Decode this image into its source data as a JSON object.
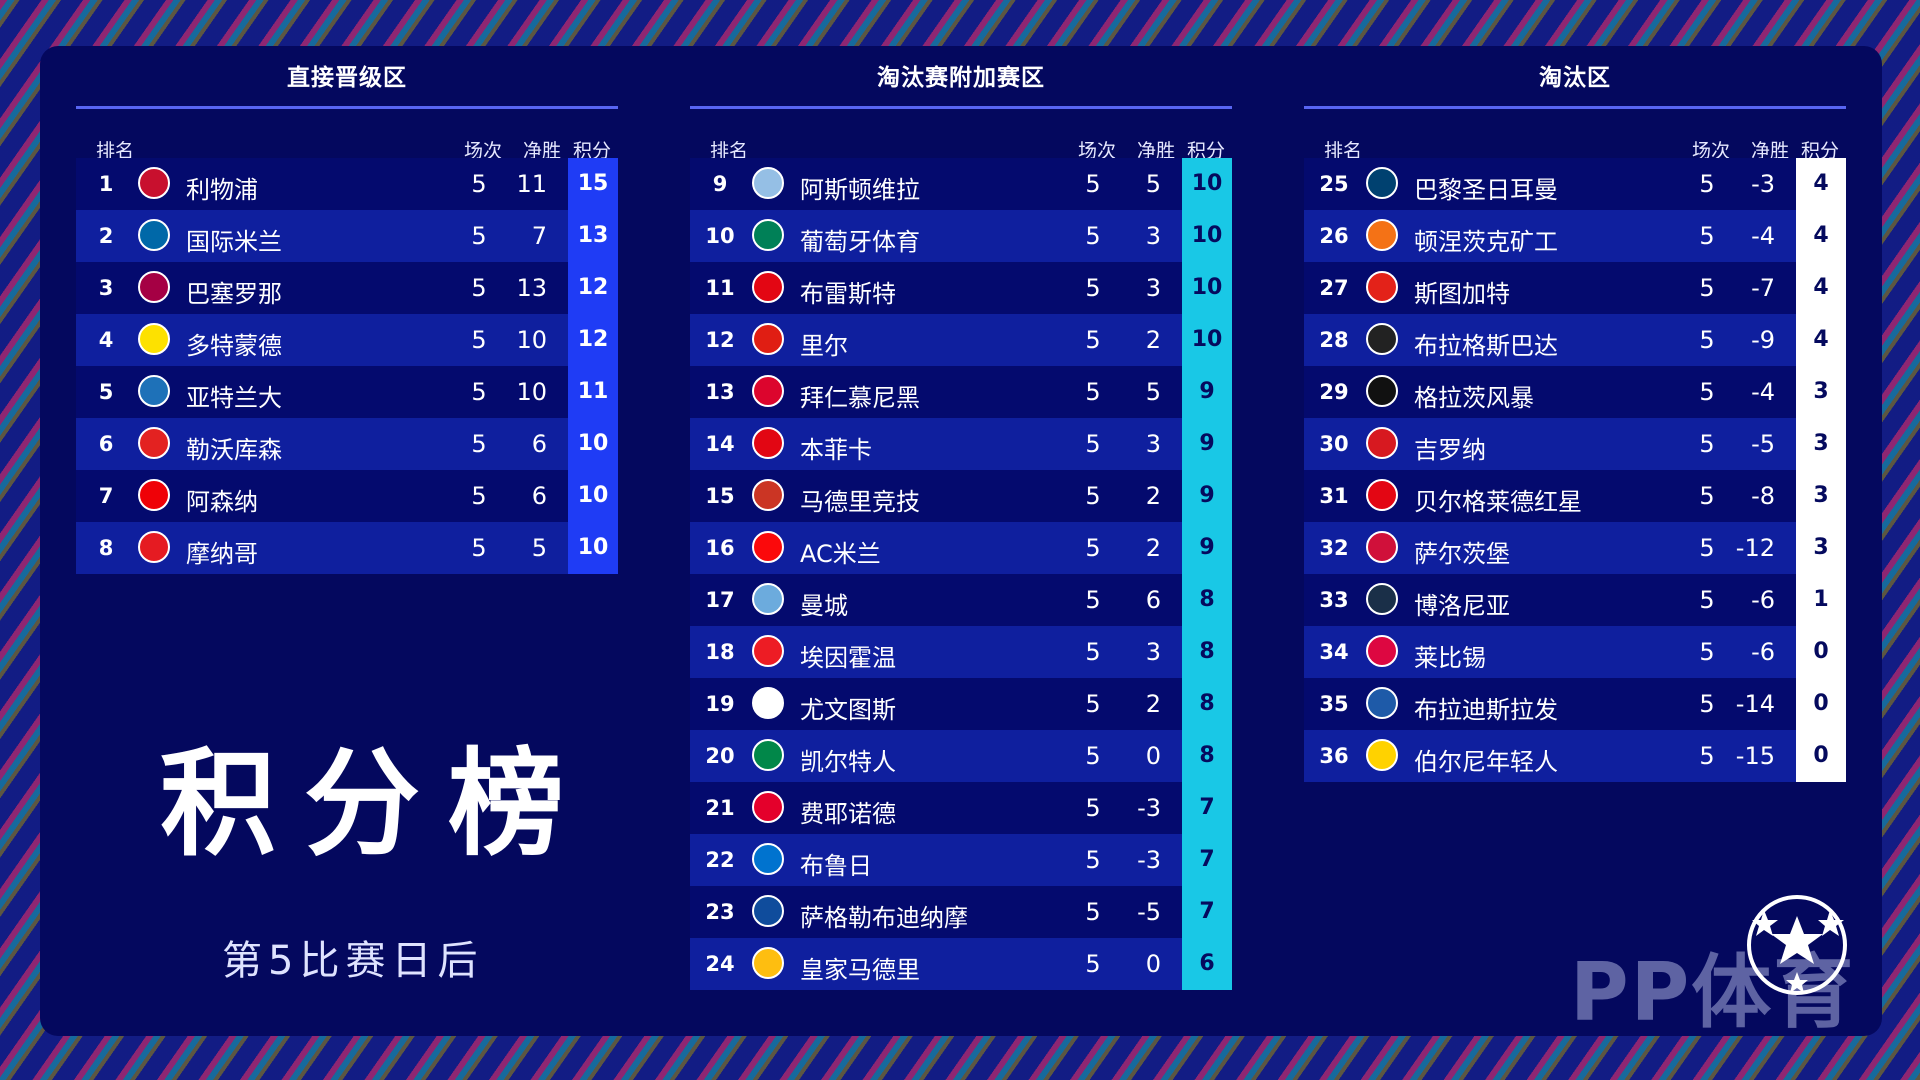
{
  "title": "积分榜",
  "subtitle": "第5比赛日后",
  "watermark": "PP体育",
  "headers": {
    "rank": "排名",
    "played": "场次",
    "gd": "净胜",
    "pts": "积分"
  },
  "sections": [
    {
      "title": "直接晋级区",
      "pts_color": "#1f3cf5",
      "pts_text_color": "#ffffff",
      "rows": [
        {
          "rank": "1",
          "team": "利物浦",
          "played": "5",
          "gd": "11",
          "pts": "15",
          "logo_icon": "liverpool-crest",
          "logo_color": "#c8102e"
        },
        {
          "rank": "2",
          "team": "国际米兰",
          "played": "5",
          "gd": "7",
          "pts": "13",
          "logo_icon": "inter-crest",
          "logo_color": "#0068a8"
        },
        {
          "rank": "3",
          "team": "巴塞罗那",
          "played": "5",
          "gd": "13",
          "pts": "12",
          "logo_icon": "barcelona-crest",
          "logo_color": "#a50044"
        },
        {
          "rank": "4",
          "team": "多特蒙德",
          "played": "5",
          "gd": "10",
          "pts": "12",
          "logo_icon": "dortmund-crest",
          "logo_color": "#fde100"
        },
        {
          "rank": "5",
          "team": "亚特兰大",
          "played": "5",
          "gd": "10",
          "pts": "11",
          "logo_icon": "atalanta-crest",
          "logo_color": "#1e71b8"
        },
        {
          "rank": "6",
          "team": "勒沃库森",
          "played": "5",
          "gd": "6",
          "pts": "10",
          "logo_icon": "leverkusen-crest",
          "logo_color": "#e32221"
        },
        {
          "rank": "7",
          "team": "阿森纳",
          "played": "5",
          "gd": "6",
          "pts": "10",
          "logo_icon": "arsenal-crest",
          "logo_color": "#ef0107"
        },
        {
          "rank": "8",
          "team": "摩纳哥",
          "played": "5",
          "gd": "5",
          "pts": "10",
          "logo_icon": "monaco-crest",
          "logo_color": "#e51b22"
        }
      ]
    },
    {
      "title": "淘汰赛附加赛区",
      "pts_color": "#19c8e6",
      "pts_text_color": "#050a5e",
      "rows": [
        {
          "rank": "9",
          "team": "阿斯顿维拉",
          "played": "5",
          "gd": "5",
          "pts": "10",
          "logo_icon": "aston-villa-crest",
          "logo_color": "#95bfe5"
        },
        {
          "rank": "10",
          "team": "葡萄牙体育",
          "played": "5",
          "gd": "3",
          "pts": "10",
          "logo_icon": "sporting-crest",
          "logo_color": "#008057"
        },
        {
          "rank": "11",
          "team": "布雷斯特",
          "played": "5",
          "gd": "3",
          "pts": "10",
          "logo_icon": "brest-crest",
          "logo_color": "#e30613"
        },
        {
          "rank": "12",
          "team": "里尔",
          "played": "5",
          "gd": "2",
          "pts": "10",
          "logo_icon": "lille-crest",
          "logo_color": "#e01e13"
        },
        {
          "rank": "13",
          "team": "拜仁慕尼黑",
          "played": "5",
          "gd": "5",
          "pts": "9",
          "logo_icon": "bayern-crest",
          "logo_color": "#dc052d"
        },
        {
          "rank": "14",
          "team": "本菲卡",
          "played": "5",
          "gd": "3",
          "pts": "9",
          "logo_icon": "benfica-crest",
          "logo_color": "#e20613"
        },
        {
          "rank": "15",
          "team": "马德里竞技",
          "played": "5",
          "gd": "2",
          "pts": "9",
          "logo_icon": "atletico-crest",
          "logo_color": "#cb3524"
        },
        {
          "rank": "16",
          "team": "AC米兰",
          "played": "5",
          "gd": "2",
          "pts": "9",
          "logo_icon": "ac-milan-crest",
          "logo_color": "#fb090b"
        },
        {
          "rank": "17",
          "team": "曼城",
          "played": "5",
          "gd": "6",
          "pts": "8",
          "logo_icon": "man-city-crest",
          "logo_color": "#6cabdd"
        },
        {
          "rank": "18",
          "team": "埃因霍温",
          "played": "5",
          "gd": "3",
          "pts": "8",
          "logo_icon": "psv-crest",
          "logo_color": "#ed1c24"
        },
        {
          "rank": "19",
          "team": "尤文图斯",
          "played": "5",
          "gd": "2",
          "pts": "8",
          "logo_icon": "juventus-crest",
          "logo_color": "#ffffff"
        },
        {
          "rank": "20",
          "team": "凯尔特人",
          "played": "5",
          "gd": "0",
          "pts": "8",
          "logo_icon": "celtic-crest",
          "logo_color": "#018749"
        },
        {
          "rank": "21",
          "team": "费耶诺德",
          "played": "5",
          "gd": "-3",
          "pts": "7",
          "logo_icon": "feyenoord-crest",
          "logo_color": "#e4002b"
        },
        {
          "rank": "22",
          "team": "布鲁日",
          "played": "5",
          "gd": "-3",
          "pts": "7",
          "logo_icon": "club-brugge-crest",
          "logo_color": "#0073cf"
        },
        {
          "rank": "23",
          "team": "萨格勒布迪纳摩",
          "played": "5",
          "gd": "-5",
          "pts": "7",
          "logo_icon": "dinamo-zagreb-crest",
          "logo_color": "#0f4c9c"
        },
        {
          "rank": "24",
          "team": "皇家马德里",
          "played": "5",
          "gd": "0",
          "pts": "6",
          "logo_icon": "real-madrid-crest",
          "logo_color": "#febe10"
        }
      ]
    },
    {
      "title": "淘汰区",
      "pts_color": "#ffffff",
      "pts_text_color": "#050a5e",
      "rows": [
        {
          "rank": "25",
          "team": "巴黎圣日耳曼",
          "played": "5",
          "gd": "-3",
          "pts": "4",
          "logo_icon": "psg-crest",
          "logo_color": "#004170"
        },
        {
          "rank": "26",
          "team": "顿涅茨克矿工",
          "played": "5",
          "gd": "-4",
          "pts": "4",
          "logo_icon": "shakhtar-crest",
          "logo_color": "#f47216"
        },
        {
          "rank": "27",
          "team": "斯图加特",
          "played": "5",
          "gd": "-7",
          "pts": "4",
          "logo_icon": "stuttgart-crest",
          "logo_color": "#e32219"
        },
        {
          "rank": "28",
          "team": "布拉格斯巴达",
          "played": "5",
          "gd": "-9",
          "pts": "4",
          "logo_icon": "sparta-prague-crest",
          "logo_color": "#222222"
        },
        {
          "rank": "29",
          "team": "格拉茨风暴",
          "played": "5",
          "gd": "-4",
          "pts": "3",
          "logo_icon": "sturm-graz-crest",
          "logo_color": "#111111"
        },
        {
          "rank": "30",
          "team": "吉罗纳",
          "played": "5",
          "gd": "-5",
          "pts": "3",
          "logo_icon": "girona-crest",
          "logo_color": "#d71920"
        },
        {
          "rank": "31",
          "team": "贝尔格莱德红星",
          "played": "5",
          "gd": "-8",
          "pts": "3",
          "logo_icon": "red-star-crest",
          "logo_color": "#e30613"
        },
        {
          "rank": "32",
          "team": "萨尔茨堡",
          "played": "5",
          "gd": "-12",
          "pts": "3",
          "logo_icon": "salzburg-crest",
          "logo_color": "#d0103a"
        },
        {
          "rank": "33",
          "team": "博洛尼亚",
          "played": "5",
          "gd": "-6",
          "pts": "1",
          "logo_icon": "bologna-crest",
          "logo_color": "#1a2f48"
        },
        {
          "rank": "34",
          "team": "莱比锡",
          "played": "5",
          "gd": "-6",
          "pts": "0",
          "logo_icon": "leipzig-crest",
          "logo_color": "#dd0741"
        },
        {
          "rank": "35",
          "team": "布拉迪斯拉发",
          "played": "5",
          "gd": "-14",
          "pts": "0",
          "logo_icon": "slovan-bratislava-crest",
          "logo_color": "#1e5aa8"
        },
        {
          "rank": "36",
          "team": "伯尔尼年轻人",
          "played": "5",
          "gd": "-15",
          "pts": "0",
          "logo_icon": "young-boys-crest",
          "logo_color": "#ffd200"
        }
      ]
    }
  ]
}
